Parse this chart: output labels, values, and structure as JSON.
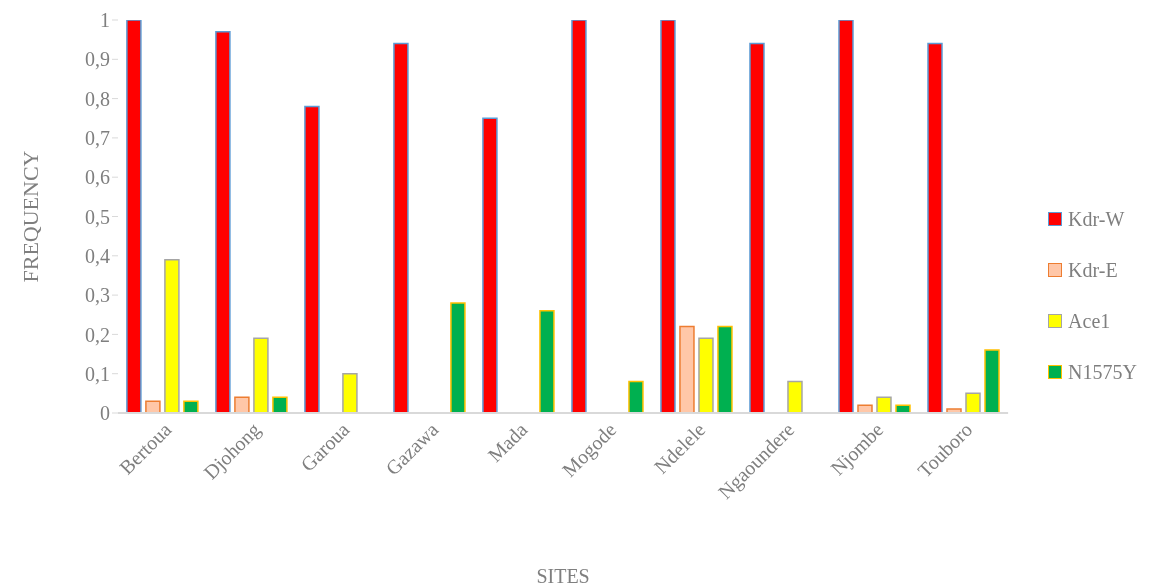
{
  "chart_data": {
    "type": "bar",
    "xlabel": "SITES",
    "ylabel": "FREQUENCY",
    "categories": [
      "Bertoua",
      "Djohong",
      "Garoua",
      "Gazawa",
      "Mada",
      "Mogode",
      "Ndelele",
      "Ngaoundere",
      "Njombe",
      "Touboro"
    ],
    "series": [
      {
        "name": "Kdr-W",
        "color": "#ff0000",
        "values": [
          1,
          0.97,
          0.78,
          0.94,
          0.75,
          1,
          1,
          0.94,
          1,
          0.94
        ]
      },
      {
        "name": "Kdr-E",
        "color": "#ffc7a8",
        "values": [
          0.03,
          0.04,
          0,
          0,
          0,
          0,
          0.22,
          0,
          0.02,
          0.01
        ]
      },
      {
        "name": "Ace1",
        "color": "#ffff00",
        "values": [
          0.39,
          0.19,
          0.1,
          0,
          0,
          0,
          0.19,
          0.08,
          0.04,
          0.05
        ]
      },
      {
        "name": "N1575Y",
        "color": "#00b050",
        "values": [
          0.03,
          0.04,
          0,
          0.28,
          0.26,
          0.08,
          0.22,
          0,
          0.02,
          0.16
        ]
      }
    ],
    "ylim": [
      0,
      1
    ],
    "yticks": [
      0,
      {
        "value": 0.1,
        "label": "0,1"
      },
      {
        "value": 0.2,
        "label": "0,2"
      },
      {
        "value": 0.3,
        "label": "0,3"
      },
      {
        "value": 0.4,
        "label": "0,4"
      },
      {
        "value": 0.5,
        "label": "0,5"
      },
      {
        "value": 0.6,
        "label": "0,6"
      },
      {
        "value": 0.7,
        "label": "0,7"
      },
      {
        "value": 0.8,
        "label": "0,8"
      },
      {
        "value": 0.9,
        "label": "0,9"
      },
      1
    ],
    "grid": false,
    "legend": "right"
  }
}
